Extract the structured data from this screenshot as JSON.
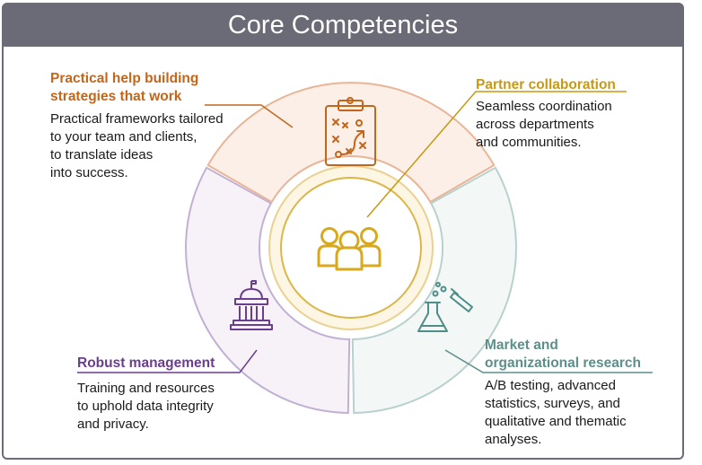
{
  "title": "Core Competencies",
  "colors": {
    "strategy": "#c4661a",
    "partner": "#c69a12",
    "management": "#6a3d8f",
    "research": "#5d8f8a",
    "title_bg": "#6b6b77"
  },
  "segments": [
    {
      "key": "strategy",
      "icon": "clipboard-strategy-icon",
      "heading": [
        "Practical help building",
        "strategies that work"
      ],
      "body": [
        "Practical frameworks tailored",
        "to your team and clients,",
        "to translate ideas",
        "into success."
      ]
    },
    {
      "key": "partner",
      "icon": "people-group-icon",
      "heading": [
        "Partner collaboration"
      ],
      "body": [
        "Seamless coordination",
        "across departments",
        "and communities."
      ]
    },
    {
      "key": "management",
      "icon": "government-building-icon",
      "heading": [
        "Robust management"
      ],
      "body": [
        "Training and resources",
        "to uphold data integrity",
        "and privacy."
      ]
    },
    {
      "key": "research",
      "icon": "lab-flask-icon",
      "heading": [
        "Market and",
        "organizational research"
      ],
      "body": [
        "A/B testing, advanced",
        "statistics, surveys, and",
        "qualitative and thematic",
        "analyses."
      ]
    }
  ]
}
